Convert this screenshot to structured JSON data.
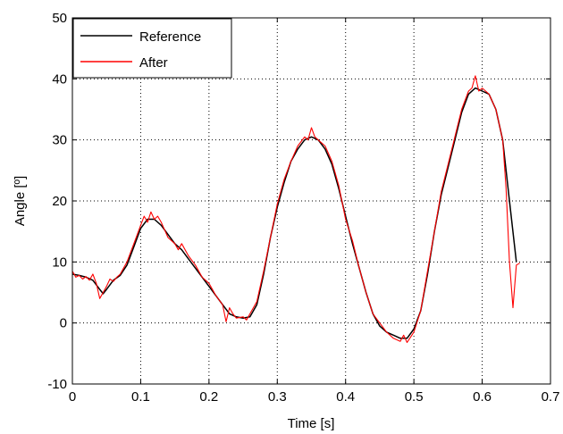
{
  "chart_data": {
    "type": "line",
    "title": "",
    "xlabel": "Time [s]",
    "ylabel": "Angle [º]",
    "xlim": [
      0,
      0.7
    ],
    "ylim": [
      -10,
      50
    ],
    "xticks": [
      0,
      0.1,
      0.2,
      0.3,
      0.4,
      0.5,
      0.6,
      0.7
    ],
    "yticks": [
      -10,
      0,
      10,
      20,
      30,
      40,
      50
    ],
    "xtick_labels": [
      "0",
      "0.1",
      "0.2",
      "0.3",
      "0.4",
      "0.5",
      "0.6",
      "0.7"
    ],
    "ytick_labels": [
      "-10",
      "0",
      "10",
      "20",
      "30",
      "40",
      "50"
    ],
    "grid": true,
    "legend_position": "top-left",
    "series": [
      {
        "name": "Reference",
        "color": "#000000",
        "points": [
          [
            0.0,
            8.0
          ],
          [
            0.01,
            7.8
          ],
          [
            0.02,
            7.5
          ],
          [
            0.03,
            7.0
          ],
          [
            0.04,
            5.5
          ],
          [
            0.045,
            4.8
          ],
          [
            0.05,
            5.5
          ],
          [
            0.06,
            7.0
          ],
          [
            0.07,
            7.8
          ],
          [
            0.08,
            9.5
          ],
          [
            0.09,
            12.5
          ],
          [
            0.1,
            15.5
          ],
          [
            0.11,
            17.0
          ],
          [
            0.12,
            17.0
          ],
          [
            0.13,
            16.0
          ],
          [
            0.14,
            14.5
          ],
          [
            0.15,
            13.0
          ],
          [
            0.16,
            12.0
          ],
          [
            0.17,
            10.5
          ],
          [
            0.18,
            9.0
          ],
          [
            0.19,
            7.5
          ],
          [
            0.2,
            6.0
          ],
          [
            0.21,
            4.5
          ],
          [
            0.22,
            3.0
          ],
          [
            0.23,
            1.5
          ],
          [
            0.24,
            1.0
          ],
          [
            0.25,
            0.8
          ],
          [
            0.26,
            1.0
          ],
          [
            0.27,
            3.0
          ],
          [
            0.28,
            8.0
          ],
          [
            0.29,
            14.0
          ],
          [
            0.3,
            19.0
          ],
          [
            0.31,
            23.0
          ],
          [
            0.32,
            26.5
          ],
          [
            0.33,
            28.5
          ],
          [
            0.34,
            30.0
          ],
          [
            0.35,
            30.5
          ],
          [
            0.36,
            30.0
          ],
          [
            0.37,
            28.5
          ],
          [
            0.38,
            26.0
          ],
          [
            0.39,
            22.0
          ],
          [
            0.4,
            17.5
          ],
          [
            0.41,
            13.0
          ],
          [
            0.42,
            9.0
          ],
          [
            0.43,
            5.0
          ],
          [
            0.44,
            1.5
          ],
          [
            0.45,
            -0.5
          ],
          [
            0.46,
            -1.5
          ],
          [
            0.47,
            -2.0
          ],
          [
            0.48,
            -2.5
          ],
          [
            0.49,
            -2.5
          ],
          [
            0.5,
            -1.0
          ],
          [
            0.51,
            2.0
          ],
          [
            0.52,
            8.0
          ],
          [
            0.53,
            15.0
          ],
          [
            0.54,
            21.0
          ],
          [
            0.55,
            25.5
          ],
          [
            0.56,
            30.0
          ],
          [
            0.57,
            34.5
          ],
          [
            0.58,
            37.5
          ],
          [
            0.59,
            38.5
          ],
          [
            0.6,
            38.0
          ],
          [
            0.61,
            37.5
          ],
          [
            0.62,
            35.0
          ],
          [
            0.63,
            30.0
          ],
          [
            0.64,
            20.0
          ],
          [
            0.65,
            10.0
          ]
        ]
      },
      {
        "name": "After",
        "color": "#ff0000",
        "points": [
          [
            0.0,
            8.5
          ],
          [
            0.005,
            7.5
          ],
          [
            0.01,
            7.8
          ],
          [
            0.015,
            7.2
          ],
          [
            0.02,
            7.6
          ],
          [
            0.025,
            7.0
          ],
          [
            0.03,
            8.0
          ],
          [
            0.035,
            6.5
          ],
          [
            0.04,
            4.0
          ],
          [
            0.045,
            5.0
          ],
          [
            0.05,
            6.0
          ],
          [
            0.055,
            7.2
          ],
          [
            0.06,
            6.8
          ],
          [
            0.065,
            7.5
          ],
          [
            0.07,
            8.0
          ],
          [
            0.08,
            10.0
          ],
          [
            0.09,
            13.0
          ],
          [
            0.1,
            16.0
          ],
          [
            0.105,
            17.5
          ],
          [
            0.11,
            16.5
          ],
          [
            0.115,
            18.2
          ],
          [
            0.12,
            17.0
          ],
          [
            0.125,
            17.5
          ],
          [
            0.13,
            16.5
          ],
          [
            0.14,
            14.0
          ],
          [
            0.15,
            13.0
          ],
          [
            0.155,
            12.0
          ],
          [
            0.16,
            13.0
          ],
          [
            0.17,
            11.0
          ],
          [
            0.18,
            9.5
          ],
          [
            0.19,
            7.5
          ],
          [
            0.2,
            6.5
          ],
          [
            0.21,
            4.5
          ],
          [
            0.22,
            3.0
          ],
          [
            0.225,
            0.2
          ],
          [
            0.23,
            2.5
          ],
          [
            0.235,
            1.5
          ],
          [
            0.24,
            0.8
          ],
          [
            0.25,
            1.0
          ],
          [
            0.255,
            0.5
          ],
          [
            0.26,
            1.5
          ],
          [
            0.27,
            3.5
          ],
          [
            0.28,
            8.5
          ],
          [
            0.29,
            14.0
          ],
          [
            0.3,
            19.5
          ],
          [
            0.31,
            23.5
          ],
          [
            0.32,
            26.5
          ],
          [
            0.33,
            29.0
          ],
          [
            0.34,
            30.5
          ],
          [
            0.345,
            30.0
          ],
          [
            0.35,
            32.0
          ],
          [
            0.355,
            30.5
          ],
          [
            0.36,
            30.0
          ],
          [
            0.37,
            29.0
          ],
          [
            0.38,
            26.5
          ],
          [
            0.39,
            22.5
          ],
          [
            0.4,
            17.0
          ],
          [
            0.41,
            13.5
          ],
          [
            0.42,
            9.0
          ],
          [
            0.43,
            5.0
          ],
          [
            0.44,
            1.5
          ],
          [
            0.45,
            0.0
          ],
          [
            0.46,
            -1.5
          ],
          [
            0.47,
            -2.5
          ],
          [
            0.48,
            -3.0
          ],
          [
            0.485,
            -2.0
          ],
          [
            0.49,
            -3.2
          ],
          [
            0.5,
            -1.5
          ],
          [
            0.51,
            2.0
          ],
          [
            0.52,
            8.5
          ],
          [
            0.53,
            15.0
          ],
          [
            0.54,
            21.5
          ],
          [
            0.55,
            26.0
          ],
          [
            0.56,
            30.5
          ],
          [
            0.57,
            35.0
          ],
          [
            0.58,
            38.0
          ],
          [
            0.585,
            38.5
          ],
          [
            0.59,
            40.5
          ],
          [
            0.595,
            38.0
          ],
          [
            0.6,
            38.5
          ],
          [
            0.61,
            37.5
          ],
          [
            0.62,
            35.0
          ],
          [
            0.63,
            30.0
          ],
          [
            0.635,
            22.0
          ],
          [
            0.64,
            10.0
          ],
          [
            0.645,
            2.5
          ],
          [
            0.65,
            9.5
          ],
          [
            0.655,
            9.8
          ]
        ]
      }
    ]
  }
}
